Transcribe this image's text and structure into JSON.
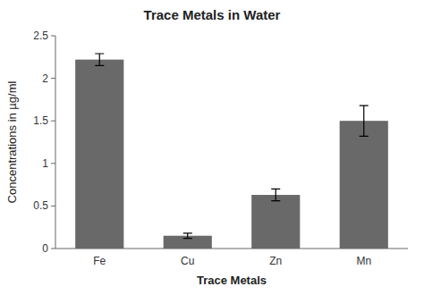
{
  "chart_data": {
    "type": "bar",
    "title": "Trace Metals in Water",
    "xlabel": "Trace Metals",
    "ylabel": "Concentrations in µg/ml",
    "categories": [
      "Fe",
      "Cu",
      "Zn",
      "Mn"
    ],
    "values": [
      2.22,
      0.15,
      0.63,
      1.5
    ],
    "errors": [
      0.07,
      0.03,
      0.07,
      0.18
    ],
    "color": "#696969",
    "ylim": [
      0,
      2.5
    ],
    "yticks": [
      0,
      0.5,
      1,
      1.5,
      2,
      2.5
    ],
    "grid": false
  }
}
